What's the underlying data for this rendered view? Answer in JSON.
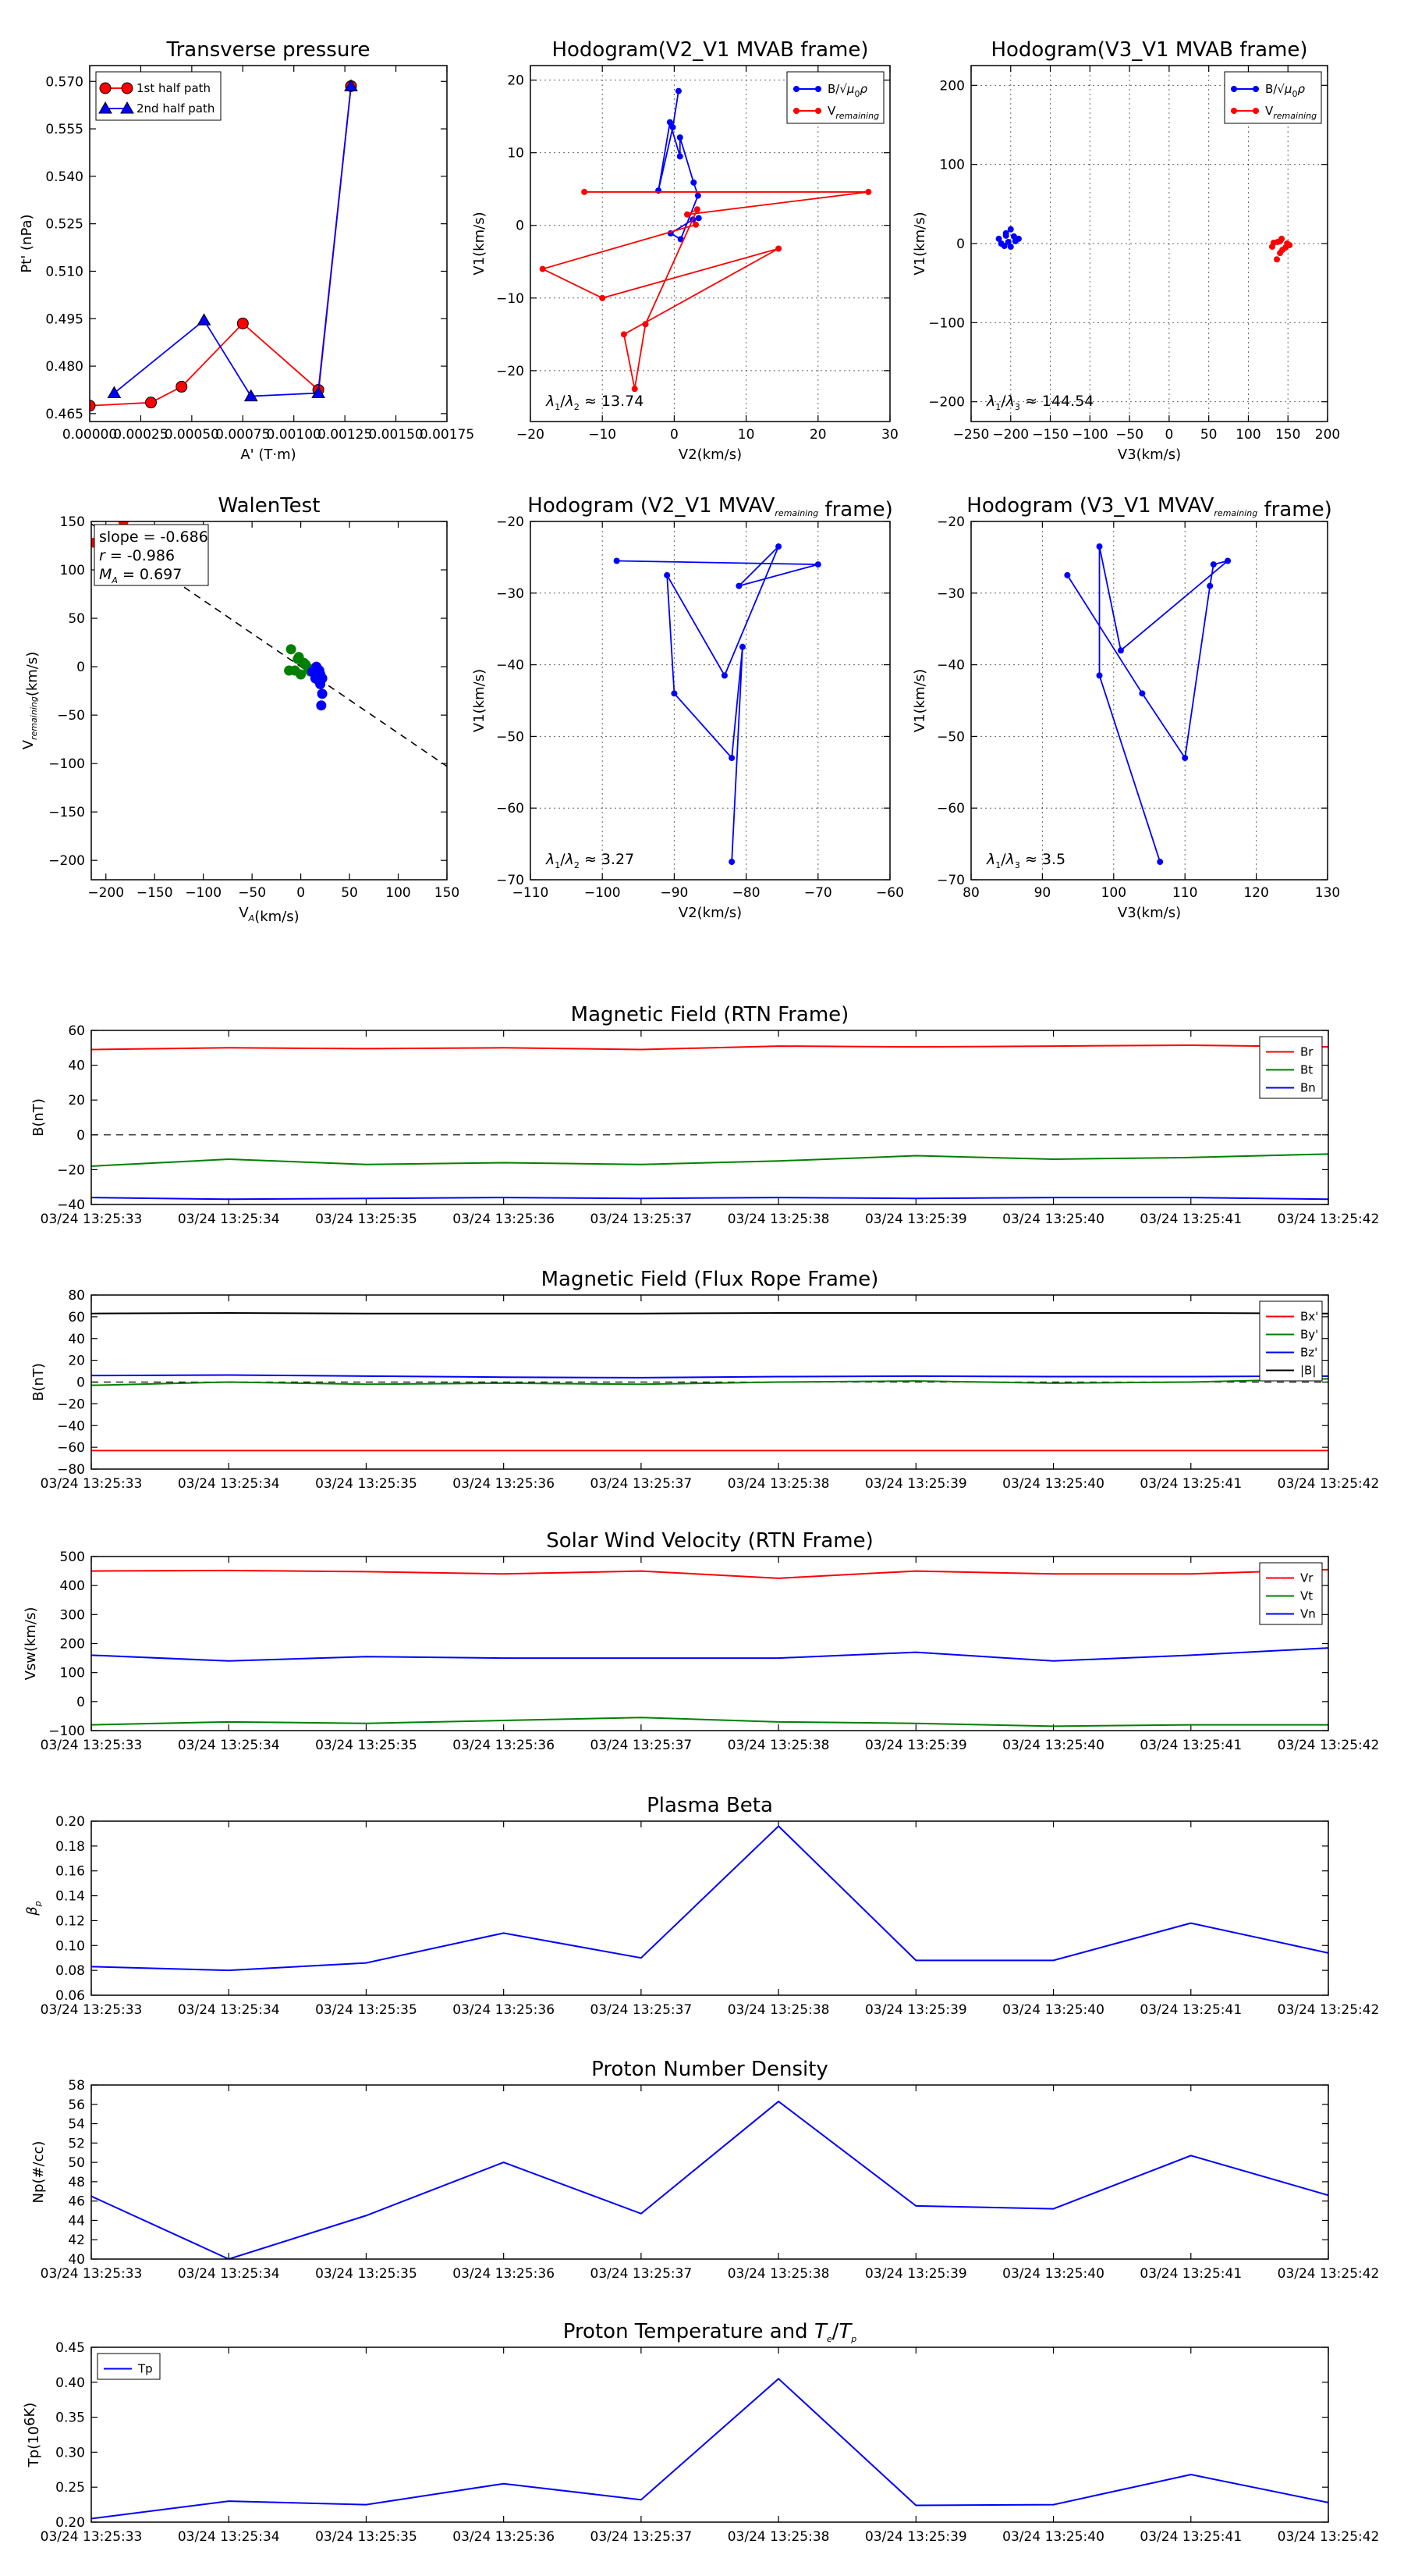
{
  "chart_data": [
    {
      "id": "c1",
      "type": "line",
      "title": "Transverse pressure",
      "xlabel": "A' (T·m)",
      "ylabel": "Pt' (nPa)",
      "xlim": [
        0,
        0.00175
      ],
      "ylim": [
        0.4625,
        0.575
      ],
      "xticks": [
        0,
        0.00025,
        0.0005,
        0.00075,
        0.001,
        0.00125,
        0.0015,
        0.00175
      ],
      "xtick_labels": [
        "0.00000",
        "0.00025",
        "0.00050",
        "0.00075",
        "0.00100",
        "0.00125",
        "0.00150",
        "0.00175"
      ],
      "yticks": [
        0.465,
        0.48,
        0.495,
        0.51,
        0.525,
        0.54,
        0.555,
        0.57
      ],
      "ytick_labels": [
        "0.465",
        "0.480",
        "0.495",
        "0.510",
        "0.525",
        "0.540",
        "0.555",
        "0.570"
      ],
      "grid": false,
      "legend": "top-left",
      "series": [
        {
          "name": "1st half path",
          "color": "#ff0000",
          "marker": "circle",
          "x": [
            0.0,
            0.0003,
            0.00045,
            0.00075,
            0.00112,
            0.00128
          ],
          "y": [
            0.4675,
            0.4685,
            0.4735,
            0.4935,
            0.4725,
            0.5685
          ]
        },
        {
          "name": "2nd half path",
          "color": "#0000ff",
          "marker": "triangle",
          "x": [
            0.00128,
            0.00112,
            0.00079,
            0.00056,
            0.00012
          ],
          "y": [
            0.5685,
            0.4715,
            0.4705,
            0.4945,
            0.4715
          ]
        }
      ]
    },
    {
      "id": "c2",
      "type": "line",
      "title": "Hodogram(V2_V1 MVAB frame)",
      "xlabel": "V2(km/s)",
      "ylabel": "V1(km/s)",
      "xlim": [
        -20,
        30
      ],
      "ylim": [
        -27,
        22
      ],
      "xticks": [
        -20,
        -10,
        0,
        10,
        20,
        30
      ],
      "xtick_labels": [
        "−20",
        "−10",
        "0",
        "10",
        "20",
        "30"
      ],
      "yticks": [
        -20,
        -10,
        0,
        10,
        20
      ],
      "ytick_labels": [
        "−20",
        "−10",
        "0",
        "10",
        "20"
      ],
      "grid": true,
      "legend": "top-right",
      "annotation": "λ1/λ2 ≈ 13.74",
      "series": [
        {
          "name": "B/√μ0ρ",
          "color": "#0000ff",
          "x": [
            0.6,
            -0.2,
            -2.2,
            -0.6,
            0.8,
            0.8,
            2.7,
            3.3,
            0.9,
            -0.5,
            2.6,
            3.4
          ],
          "y": [
            18.5,
            13.5,
            4.8,
            14.2,
            9.5,
            12.1,
            5.9,
            4.1,
            -1.9,
            -1.1,
            0.8,
            1.0
          ]
        },
        {
          "name": "V_remaining",
          "color": "#ff0000",
          "x": [
            -12.5,
            27,
            1.8,
            3.2,
            -4,
            -5.5,
            -7,
            14.5,
            -10,
            -18.3,
            3
          ],
          "y": [
            4.6,
            4.6,
            1.5,
            2.2,
            -13.6,
            -22.5,
            -15,
            -3.2,
            -10,
            -6,
            0.1
          ]
        }
      ]
    },
    {
      "id": "c3",
      "type": "scatter",
      "title": "Hodogram(V3_V1 MVAB frame)",
      "xlabel": "V3(km/s)",
      "ylabel": "V1(km/s)",
      "xlim": [
        -250,
        200
      ],
      "ylim": [
        -225,
        225
      ],
      "xticks": [
        -250,
        -200,
        -150,
        -100,
        -50,
        0,
        50,
        100,
        150,
        200
      ],
      "xtick_labels": [
        "−250",
        "−200",
        "−150",
        "−100",
        "−50",
        "0",
        "50",
        "100",
        "150",
        "200"
      ],
      "yticks": [
        -200,
        -100,
        0,
        100,
        200
      ],
      "ytick_labels": [
        "−200",
        "−100",
        "0",
        "100",
        "200"
      ],
      "grid": true,
      "legend": "top-right",
      "annotation": "λ1/λ3 ≈ 144.54",
      "series": [
        {
          "name": "B/√μ0ρ",
          "color": "#0000ff",
          "x": [
            -215,
            -206,
            -200,
            -196,
            -203,
            -208,
            -194,
            -200,
            -190,
            -206,
            -212
          ],
          "y": [
            6,
            13,
            18,
            9,
            2,
            -3,
            3,
            -4,
            6,
            10,
            0
          ]
        },
        {
          "name": "V_remaining",
          "color": "#ff0000",
          "x": [
            130,
            137,
            142,
            149,
            143,
            136,
            140,
            147,
            132,
            152,
            140
          ],
          "y": [
            -4,
            2,
            6,
            0,
            -8,
            -20,
            -12,
            -5,
            1,
            -2,
            3
          ]
        }
      ]
    },
    {
      "id": "c4",
      "type": "scatter",
      "title": "WalenTest",
      "xlabel": "V_A(km/s)",
      "ylabel": "V_remaining(km/s)",
      "xlim": [
        -215,
        150
      ],
      "ylim": [
        -220,
        150
      ],
      "xticks": [
        -200,
        -150,
        -100,
        -50,
        0,
        50,
        100,
        150
      ],
      "xtick_labels": [
        "−200",
        "−150",
        "−100",
        "−50",
        "0",
        "50",
        "100",
        "150"
      ],
      "yticks": [
        -200,
        -150,
        -100,
        -50,
        0,
        50,
        100,
        150
      ],
      "ytick_labels": [
        "−200",
        "−150",
        "−100",
        "−50",
        "0",
        "50",
        "100",
        "150"
      ],
      "grid": false,
      "annotation_lines": [
        "slope = -0.686",
        "r = -0.986",
        "M_A = 0.697"
      ],
      "fit_line": {
        "slope": -0.686
      },
      "series": [
        {
          "name": "red",
          "color": "#ff0000",
          "x": [
            -212,
            -182
          ],
          "y": [
            128,
            150
          ]
        },
        {
          "name": "green",
          "color": "#008000",
          "x": [
            -10,
            -3,
            3,
            8,
            -6,
            0,
            10,
            -12,
            5,
            -2
          ],
          "y": [
            18,
            8,
            4,
            -2,
            -4,
            -8,
            -5,
            -4,
            2,
            10
          ]
        },
        {
          "name": "blue",
          "color": "#0000ff",
          "x": [
            12,
            18,
            20,
            22,
            20,
            18,
            16,
            15,
            22,
            21,
            19
          ],
          "y": [
            -5,
            -3,
            -8,
            -12,
            -18,
            -14,
            0,
            -12,
            -28,
            -40,
            -4
          ]
        }
      ]
    },
    {
      "id": "c5",
      "type": "line",
      "title": "Hodogram (V2_V1 MVAV_remaining frame)",
      "xlabel": "V2(km/s)",
      "ylabel": "V1(km/s)",
      "xlim": [
        -110,
        -60
      ],
      "ylim": [
        -70,
        -20
      ],
      "xticks": [
        -110,
        -100,
        -90,
        -80,
        -70,
        -60
      ],
      "xtick_labels": [
        "−110",
        "−100",
        "−90",
        "−80",
        "−70",
        "−60"
      ],
      "yticks": [
        -70,
        -60,
        -50,
        -40,
        -30,
        -20
      ],
      "ytick_labels": [
        "−70",
        "−60",
        "−50",
        "−40",
        "−30",
        "−20"
      ],
      "grid": true,
      "annotation": "λ1/λ2 ≈ 3.27",
      "series": [
        {
          "name": "main",
          "color": "#0000ff",
          "x": [
            -98,
            -70,
            -81,
            -75.5,
            -83,
            -91,
            -90,
            -82,
            -80.5,
            -82
          ],
          "y": [
            -25.5,
            -26,
            -29,
            -23.5,
            -41.5,
            -27.5,
            -44,
            -53,
            -37.5,
            -67.5
          ]
        }
      ]
    },
    {
      "id": "c6",
      "type": "line",
      "title": "Hodogram (V3_V1 MVAV_remaining frame)",
      "xlabel": "V3(km/s)",
      "ylabel": "V1(km/s)",
      "xlim": [
        80,
        130
      ],
      "ylim": [
        -70,
        -20
      ],
      "xticks": [
        80,
        90,
        100,
        110,
        120,
        130
      ],
      "xtick_labels": [
        "80",
        "90",
        "100",
        "110",
        "120",
        "130"
      ],
      "yticks": [
        -70,
        -60,
        -50,
        -40,
        -30,
        -20
      ],
      "ytick_labels": [
        "−70",
        "−60",
        "−50",
        "−40",
        "−30",
        "−20"
      ],
      "grid": true,
      "annotation": "λ1/λ3 ≈ 3.5",
      "series": [
        {
          "name": "main",
          "color": "#0000ff",
          "x": [
            93.5,
            104,
            110,
            113.5,
            114,
            116,
            101,
            98,
            98,
            106.5
          ],
          "y": [
            -27.5,
            -44,
            -53,
            -29,
            -26,
            -25.5,
            -38,
            -23.5,
            -41.5,
            -67.5
          ]
        }
      ]
    },
    {
      "id": "t1",
      "type": "line",
      "title": "Magnetic Field (RTN Frame)",
      "ylabel": "B(nT)",
      "ylim": [
        -40,
        60
      ],
      "yticks": [
        -40,
        -20,
        0,
        20,
        40,
        60
      ],
      "ytick_labels": [
        "−40",
        "−20",
        "0",
        "20",
        "40",
        "60"
      ],
      "zero_line": true,
      "legend": "top-right",
      "series": [
        {
          "name": "Br",
          "color": "#ff0000",
          "values": [
            49,
            50,
            49.5,
            50,
            49,
            51,
            50.5,
            51,
            51.5,
            50.5
          ]
        },
        {
          "name": "Bt",
          "color": "#008000",
          "values": [
            -18,
            -14,
            -17,
            -16,
            -17,
            -15,
            -12,
            -14,
            -13,
            -11
          ]
        },
        {
          "name": "Bn",
          "color": "#0000ff",
          "values": [
            -36,
            -37,
            -36.5,
            -36,
            -36.5,
            -36,
            -36.5,
            -36,
            -36,
            -37
          ]
        }
      ]
    },
    {
      "id": "t2",
      "type": "line",
      "title": "Magnetic Field (Flux Rope Frame)",
      "ylabel": "B(nT)",
      "ylim": [
        -80,
        80
      ],
      "yticks": [
        -80,
        -60,
        -40,
        -20,
        0,
        20,
        40,
        60,
        80
      ],
      "ytick_labels": [
        "−80",
        "−60",
        "−40",
        "−20",
        "0",
        "20",
        "40",
        "60",
        "80"
      ],
      "zero_line": true,
      "legend": "top-right",
      "series": [
        {
          "name": "Bx'",
          "color": "#ff0000",
          "values": [
            -63,
            -63,
            -63,
            -63,
            -63,
            -63,
            -63,
            -63,
            -63,
            -63
          ]
        },
        {
          "name": "By'",
          "color": "#008000",
          "values": [
            -3,
            0,
            -2,
            -1,
            -2,
            0,
            1,
            -1,
            0,
            3
          ]
        },
        {
          "name": "Bz'",
          "color": "#0000ff",
          "values": [
            6,
            6.5,
            5.5,
            4.5,
            4,
            5,
            5.5,
            5,
            5,
            5.5
          ]
        },
        {
          "name": "|B|",
          "color": "#000000",
          "values": [
            63,
            63.5,
            63,
            63,
            63,
            63.5,
            63.5,
            63.5,
            63.5,
            63
          ]
        }
      ]
    },
    {
      "id": "t3",
      "type": "line",
      "title": "Solar Wind Velocity (RTN Frame)",
      "ylabel": "Vsw(km/s)",
      "ylim": [
        -100,
        500
      ],
      "yticks": [
        -100,
        0,
        100,
        200,
        300,
        400,
        500
      ],
      "ytick_labels": [
        "−100",
        "0",
        "100",
        "200",
        "300",
        "400",
        "500"
      ],
      "zero_line": false,
      "legend": "top-right",
      "series": [
        {
          "name": "Vr",
          "color": "#ff0000",
          "values": [
            450,
            452,
            448,
            440,
            450,
            425,
            450,
            440,
            440,
            455
          ]
        },
        {
          "name": "Vt",
          "color": "#008000",
          "values": [
            -80,
            -70,
            -75,
            -65,
            -55,
            -70,
            -75,
            -85,
            -80,
            -80
          ]
        },
        {
          "name": "Vn",
          "color": "#0000ff",
          "values": [
            160,
            140,
            155,
            150,
            150,
            150,
            170,
            140,
            160,
            185
          ]
        }
      ]
    },
    {
      "id": "t4",
      "type": "line",
      "title": "Plasma Beta",
      "ylabel": "β_p",
      "ylim": [
        0.06,
        0.2
      ],
      "yticks": [
        0.06,
        0.08,
        0.1,
        0.12,
        0.14,
        0.16,
        0.18,
        0.2
      ],
      "ytick_labels": [
        "0.06",
        "0.08",
        "0.10",
        "0.12",
        "0.14",
        "0.16",
        "0.18",
        "0.20"
      ],
      "zero_line": false,
      "series": [
        {
          "name": "beta",
          "color": "#0000ff",
          "values": [
            0.083,
            0.08,
            0.086,
            0.11,
            0.09,
            0.196,
            0.088,
            0.088,
            0.118,
            0.094
          ]
        }
      ]
    },
    {
      "id": "t5",
      "type": "line",
      "title": "Proton Number Density",
      "ylabel": "Np(#/cc)",
      "ylim": [
        40,
        58
      ],
      "yticks": [
        40,
        42,
        44,
        46,
        48,
        50,
        52,
        54,
        56,
        58
      ],
      "ytick_labels": [
        "40",
        "42",
        "44",
        "46",
        "48",
        "50",
        "52",
        "54",
        "56",
        "58"
      ],
      "zero_line": false,
      "series": [
        {
          "name": "Np",
          "color": "#0000ff",
          "values": [
            46.5,
            40,
            44.5,
            50,
            44.7,
            56.3,
            45.5,
            45.2,
            50.7,
            46.6
          ]
        }
      ]
    },
    {
      "id": "t6",
      "type": "line",
      "title": "Proton Temperature and T_e/T_p",
      "ylabel": "Tp(10^6K)",
      "ylim": [
        0.2,
        0.45
      ],
      "yticks": [
        0.2,
        0.25,
        0.3,
        0.35,
        0.4,
        0.45
      ],
      "ytick_labels": [
        "0.20",
        "0.25",
        "0.30",
        "0.35",
        "0.40",
        "0.45"
      ],
      "zero_line": false,
      "legend": "top-left",
      "series": [
        {
          "name": "Tp",
          "color": "#0000ff",
          "values": [
            0.205,
            0.23,
            0.225,
            0.255,
            0.232,
            0.405,
            0.224,
            0.225,
            0.268,
            0.228
          ]
        }
      ]
    }
  ],
  "time_labels": [
    "03/24 13:25:33",
    "03/24 13:25:34",
    "03/24 13:25:35",
    "03/24 13:25:36",
    "03/24 13:25:37",
    "03/24 13:25:38",
    "03/24 13:25:39",
    "03/24 13:25:40",
    "03/24 13:25:41",
    "03/24 13:25:42"
  ]
}
